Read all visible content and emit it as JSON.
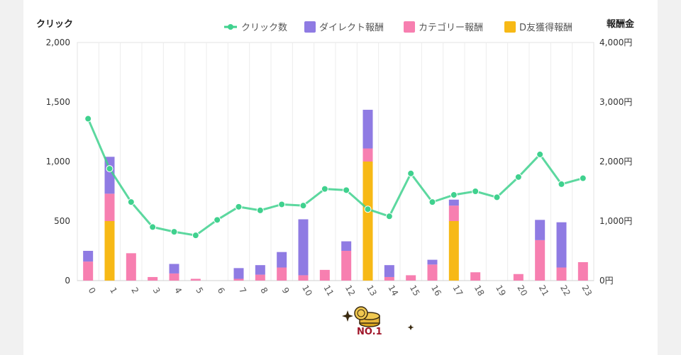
{
  "chart_data": {
    "type": "bar+line",
    "left_axis_title": "クリック",
    "right_axis_title": "報酬金",
    "left_ticks": [
      "2,000",
      "1,500",
      "1,000",
      "500",
      "0"
    ],
    "right_ticks": [
      "4,000円",
      "3,000円",
      "2,000円",
      "1,000円",
      "0円"
    ],
    "ylim_left": [
      0,
      2000
    ],
    "ylim_right": [
      0,
      4000
    ],
    "categories": [
      "0",
      "1",
      "2",
      "3",
      "4",
      "5",
      "6",
      "7",
      "8",
      "9",
      "10",
      "11",
      "12",
      "13",
      "14",
      "15",
      "16",
      "17",
      "18",
      "19",
      "20",
      "21",
      "22",
      "23"
    ],
    "line_series": {
      "name": "クリック数",
      "color": "#3fd18e",
      "values": [
        1360,
        940,
        660,
        450,
        410,
        380,
        510,
        620,
        590,
        640,
        630,
        770,
        760,
        600,
        540,
        900,
        660,
        720,
        750,
        700,
        870,
        1060,
        810,
        860
      ]
    },
    "bar_series": [
      {
        "name": "D友獲得報酬",
        "color": "#f7b916",
        "values": [
          0,
          1000,
          0,
          0,
          0,
          0,
          0,
          0,
          0,
          0,
          0,
          0,
          0,
          2000,
          0,
          0,
          0,
          1000,
          0,
          0,
          0,
          0,
          0,
          0
        ]
      },
      {
        "name": "カテゴリー報酬",
        "color": "#f77fb0",
        "values": [
          320,
          460,
          460,
          60,
          120,
          30,
          0,
          30,
          100,
          220,
          90,
          180,
          500,
          220,
          60,
          90,
          270,
          260,
          140,
          0,
          110,
          680,
          220,
          310
        ]
      },
      {
        "name": "ダイレクト報酬",
        "color": "#8f7be3",
        "values": [
          180,
          620,
          0,
          0,
          160,
          0,
          0,
          180,
          160,
          260,
          940,
          0,
          160,
          650,
          200,
          0,
          80,
          100,
          0,
          0,
          0,
          340,
          760,
          0
        ]
      }
    ],
    "legend": [
      "クリック数",
      "ダイレクト報酬",
      "カテゴリー報酬",
      "D友獲得報酬"
    ],
    "legend_position": "top-right",
    "grid": "vertical"
  },
  "badge": {
    "text": "NO.1"
  }
}
